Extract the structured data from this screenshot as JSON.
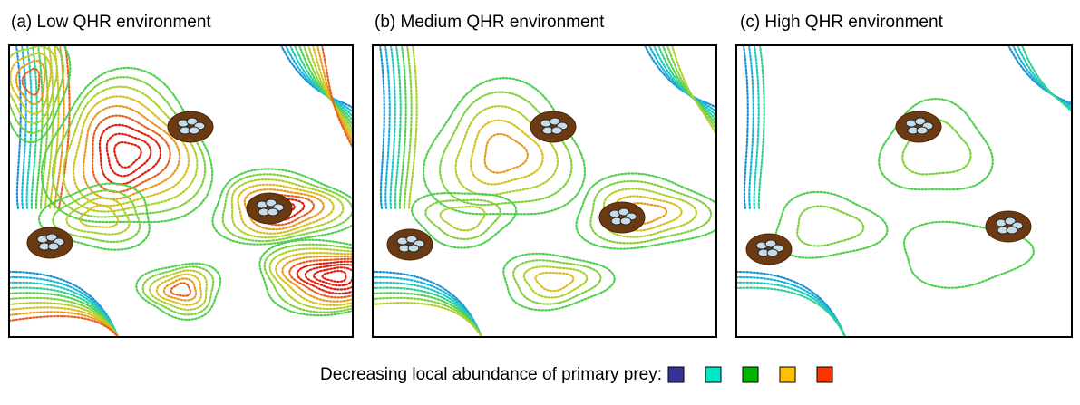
{
  "panels": [
    {
      "title": "(a) Low  QHR environment"
    },
    {
      "title": "(b) Medium  QHR environment"
    },
    {
      "title": "(c) High QHR environment"
    }
  ],
  "legend": {
    "label": "Decreasing local abundance of primary prey:"
  }
}
